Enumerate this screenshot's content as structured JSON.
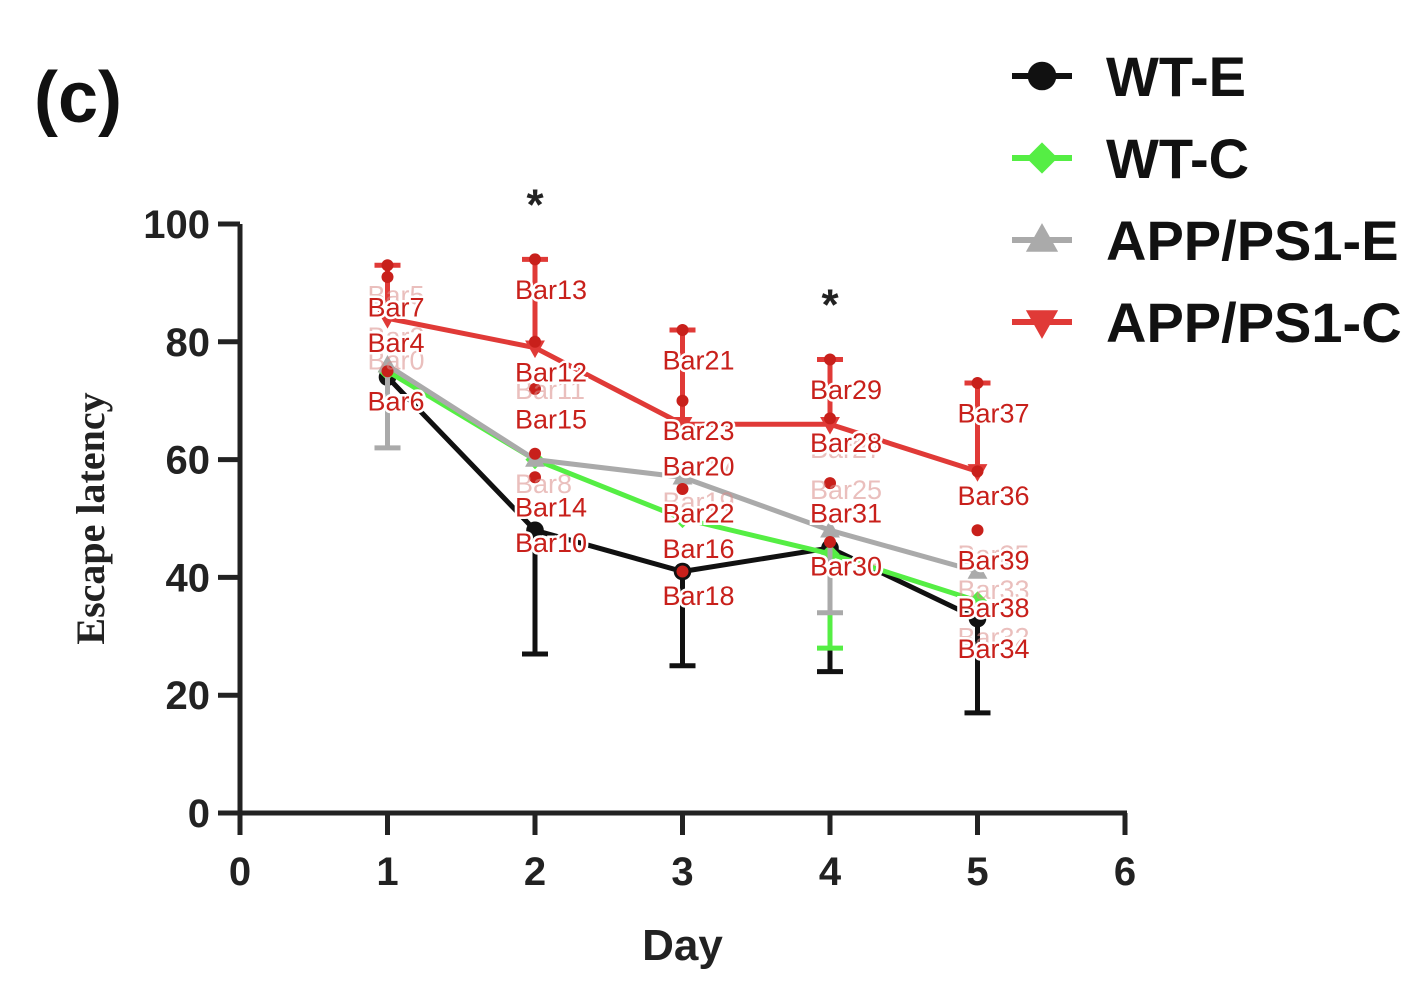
{
  "panel_label": "(c)",
  "chart_data": {
    "type": "line",
    "xlabel": "Day",
    "ylabel": "Escape latency",
    "xlim": [
      0,
      6
    ],
    "ylim": [
      0,
      100
    ],
    "x_ticks": [
      "0",
      "1",
      "2",
      "3",
      "4",
      "5",
      "6"
    ],
    "y_ticks": [
      "0",
      "20",
      "40",
      "60",
      "80",
      "100"
    ],
    "legend_position": "top-right",
    "grid": false,
    "x": [
      1,
      2,
      3,
      4,
      5
    ],
    "series": [
      {
        "name": "WT-E",
        "color": "#111111",
        "marker": "circle",
        "values": [
          74,
          48,
          41,
          45,
          33
        ],
        "err_low": [
          null,
          27,
          25,
          24,
          17
        ]
      },
      {
        "name": "WT-C",
        "color": "#55ee44",
        "marker": "diamond",
        "values": [
          75,
          60,
          50,
          44,
          36
        ],
        "err_low": [
          null,
          null,
          null,
          28,
          null
        ]
      },
      {
        "name": "APP/PS1-E",
        "color": "#aaaaaa",
        "marker": "triangle-up",
        "values": [
          76,
          60,
          57,
          48,
          41
        ],
        "err_low": [
          62,
          null,
          null,
          34,
          null
        ]
      },
      {
        "name": "APP/PS1-C",
        "color": "#e03a37",
        "marker": "triangle-down",
        "values": [
          84,
          79,
          66,
          66,
          58
        ],
        "err_high": [
          93,
          94,
          82,
          77,
          73
        ]
      }
    ],
    "significance": [
      {
        "x": 2,
        "label": "*"
      },
      {
        "x": 4,
        "label": "*"
      }
    ],
    "annotations": [
      {
        "label": "Bar0",
        "x": 1,
        "y": 77,
        "faded": true
      },
      {
        "label": "Bar2",
        "x": 1,
        "y": 81,
        "faded": true
      },
      {
        "label": "Bar4",
        "x": 1,
        "y": 80
      },
      {
        "label": "Bar5",
        "x": 1,
        "y": 88,
        "faded": true
      },
      {
        "label": "Bar6",
        "x": 1,
        "y": 70
      },
      {
        "label": "Bar7",
        "x": 1,
        "y": 86
      },
      {
        "label": "Bar8",
        "x": 2,
        "y": 56,
        "faded": true
      },
      {
        "label": "Bar10",
        "x": 2,
        "y": 46
      },
      {
        "label": "Bar11",
        "x": 2,
        "y": 72,
        "faded": true
      },
      {
        "label": "Bar12",
        "x": 2,
        "y": 75
      },
      {
        "label": "Bar13",
        "x": 2,
        "y": 89
      },
      {
        "label": "Bar14",
        "x": 2,
        "y": 52
      },
      {
        "label": "Bar15",
        "x": 2,
        "y": 67
      },
      {
        "label": "Bar16",
        "x": 3,
        "y": 45
      },
      {
        "label": "Bar17",
        "x": 3,
        "y": 59,
        "faded": true
      },
      {
        "label": "Bar18",
        "x": 3,
        "y": 37
      },
      {
        "label": "Bar19",
        "x": 3,
        "y": 53,
        "faded": true
      },
      {
        "label": "Bar20",
        "x": 3,
        "y": 59
      },
      {
        "label": "Bar21",
        "x": 3,
        "y": 77
      },
      {
        "label": "Bar22",
        "x": 3,
        "y": 51
      },
      {
        "label": "Bar23",
        "x": 3,
        "y": 65
      },
      {
        "label": "Bar25",
        "x": 4,
        "y": 55,
        "faded": true
      },
      {
        "label": "Bar26",
        "x": 4,
        "y": 42,
        "faded": true
      },
      {
        "label": "Bar27",
        "x": 4,
        "y": 62,
        "faded": true
      },
      {
        "label": "Bar28",
        "x": 4,
        "y": 63
      },
      {
        "label": "Bar29",
        "x": 4,
        "y": 72
      },
      {
        "label": "Bar30",
        "x": 4,
        "y": 42
      },
      {
        "label": "Bar31",
        "x": 4,
        "y": 51
      },
      {
        "label": "Bar32",
        "x": 5,
        "y": 30,
        "faded": true
      },
      {
        "label": "Bar33",
        "x": 5,
        "y": 38,
        "faded": true
      },
      {
        "label": "Bar34",
        "x": 5,
        "y": 28
      },
      {
        "label": "Bar35",
        "x": 5,
        "y": 44,
        "faded": true
      },
      {
        "label": "Bar36",
        "x": 5,
        "y": 54
      },
      {
        "label": "Bar37",
        "x": 5,
        "y": 68
      },
      {
        "label": "Bar38",
        "x": 5,
        "y": 35
      },
      {
        "label": "Bar39",
        "x": 5,
        "y": 43
      }
    ],
    "annotation_dots": [
      {
        "x": 1,
        "y": 93
      },
      {
        "x": 1,
        "y": 91
      },
      {
        "x": 1,
        "y": 75
      },
      {
        "x": 2,
        "y": 94
      },
      {
        "x": 2,
        "y": 80
      },
      {
        "x": 2,
        "y": 72
      },
      {
        "x": 2,
        "y": 61
      },
      {
        "x": 2,
        "y": 57
      },
      {
        "x": 3,
        "y": 82
      },
      {
        "x": 3,
        "y": 70
      },
      {
        "x": 3,
        "y": 55
      },
      {
        "x": 3,
        "y": 41
      },
      {
        "x": 4,
        "y": 77
      },
      {
        "x": 4,
        "y": 67
      },
      {
        "x": 4,
        "y": 56
      },
      {
        "x": 4,
        "y": 46
      },
      {
        "x": 5,
        "y": 73
      },
      {
        "x": 5,
        "y": 58
      },
      {
        "x": 5,
        "y": 48
      }
    ],
    "annotation_color": "#c8201b"
  }
}
